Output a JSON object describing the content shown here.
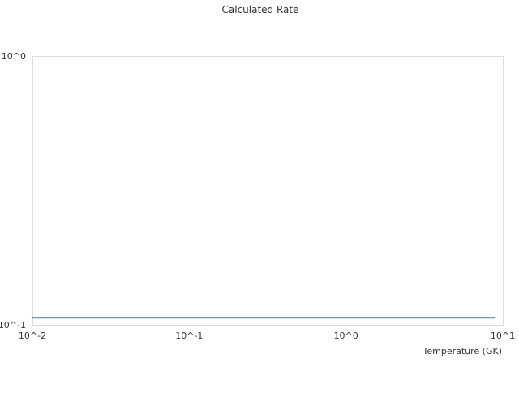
{
  "chart_data": {
    "type": "line",
    "title": "Calculated Rate",
    "xlabel": "Temperature (GK)",
    "ylabel": "",
    "x_scale": "log",
    "y_scale": "log",
    "xlim": [
      0.01,
      10
    ],
    "ylim": [
      0.1,
      1
    ],
    "x_ticks": [
      {
        "value": 0.01,
        "label": "10^-2"
      },
      {
        "value": 0.1,
        "label": "10^-1"
      },
      {
        "value": 1,
        "label": "10^0"
      },
      {
        "value": 10,
        "label": "10^1"
      }
    ],
    "y_ticks": [
      {
        "value": 0.1,
        "label": "10^-1"
      },
      {
        "value": 1,
        "label": "10^0"
      }
    ],
    "grid": false,
    "series": [
      {
        "color": "#4a9fe8",
        "x": [
          0.01,
          0.1,
          1,
          9
        ],
        "y": [
          0.106,
          0.106,
          0.106,
          0.106
        ]
      }
    ]
  }
}
